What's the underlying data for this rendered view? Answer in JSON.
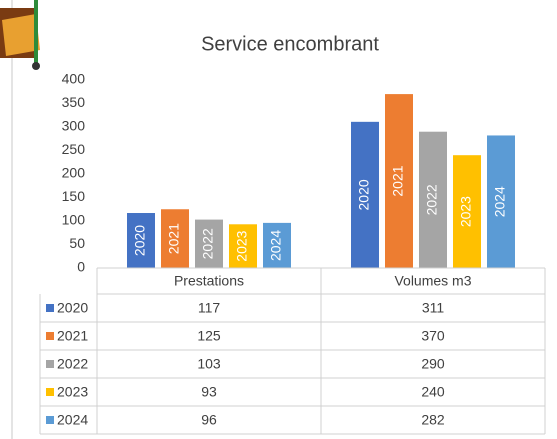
{
  "chart_data": {
    "type": "bar",
    "title": "Service encombrant",
    "categories": [
      "Prestations",
      "Volumes m3"
    ],
    "series": [
      {
        "name": "2020",
        "color": "#4472c4",
        "values": [
          117,
          311
        ]
      },
      {
        "name": "2021",
        "color": "#ed7d31",
        "values": [
          125,
          370
        ]
      },
      {
        "name": "2022",
        "color": "#a5a5a5",
        "values": [
          103,
          290
        ]
      },
      {
        "name": "2023",
        "color": "#ffc000",
        "values": [
          93,
          240
        ]
      },
      {
        "name": "2024",
        "color": "#5b9bd5",
        "values": [
          96,
          282
        ]
      }
    ],
    "ylim": [
      0,
      400
    ],
    "yticks": [
      0,
      50,
      100,
      150,
      200,
      250,
      300,
      350,
      400
    ],
    "grid": false,
    "data_table": true
  }
}
